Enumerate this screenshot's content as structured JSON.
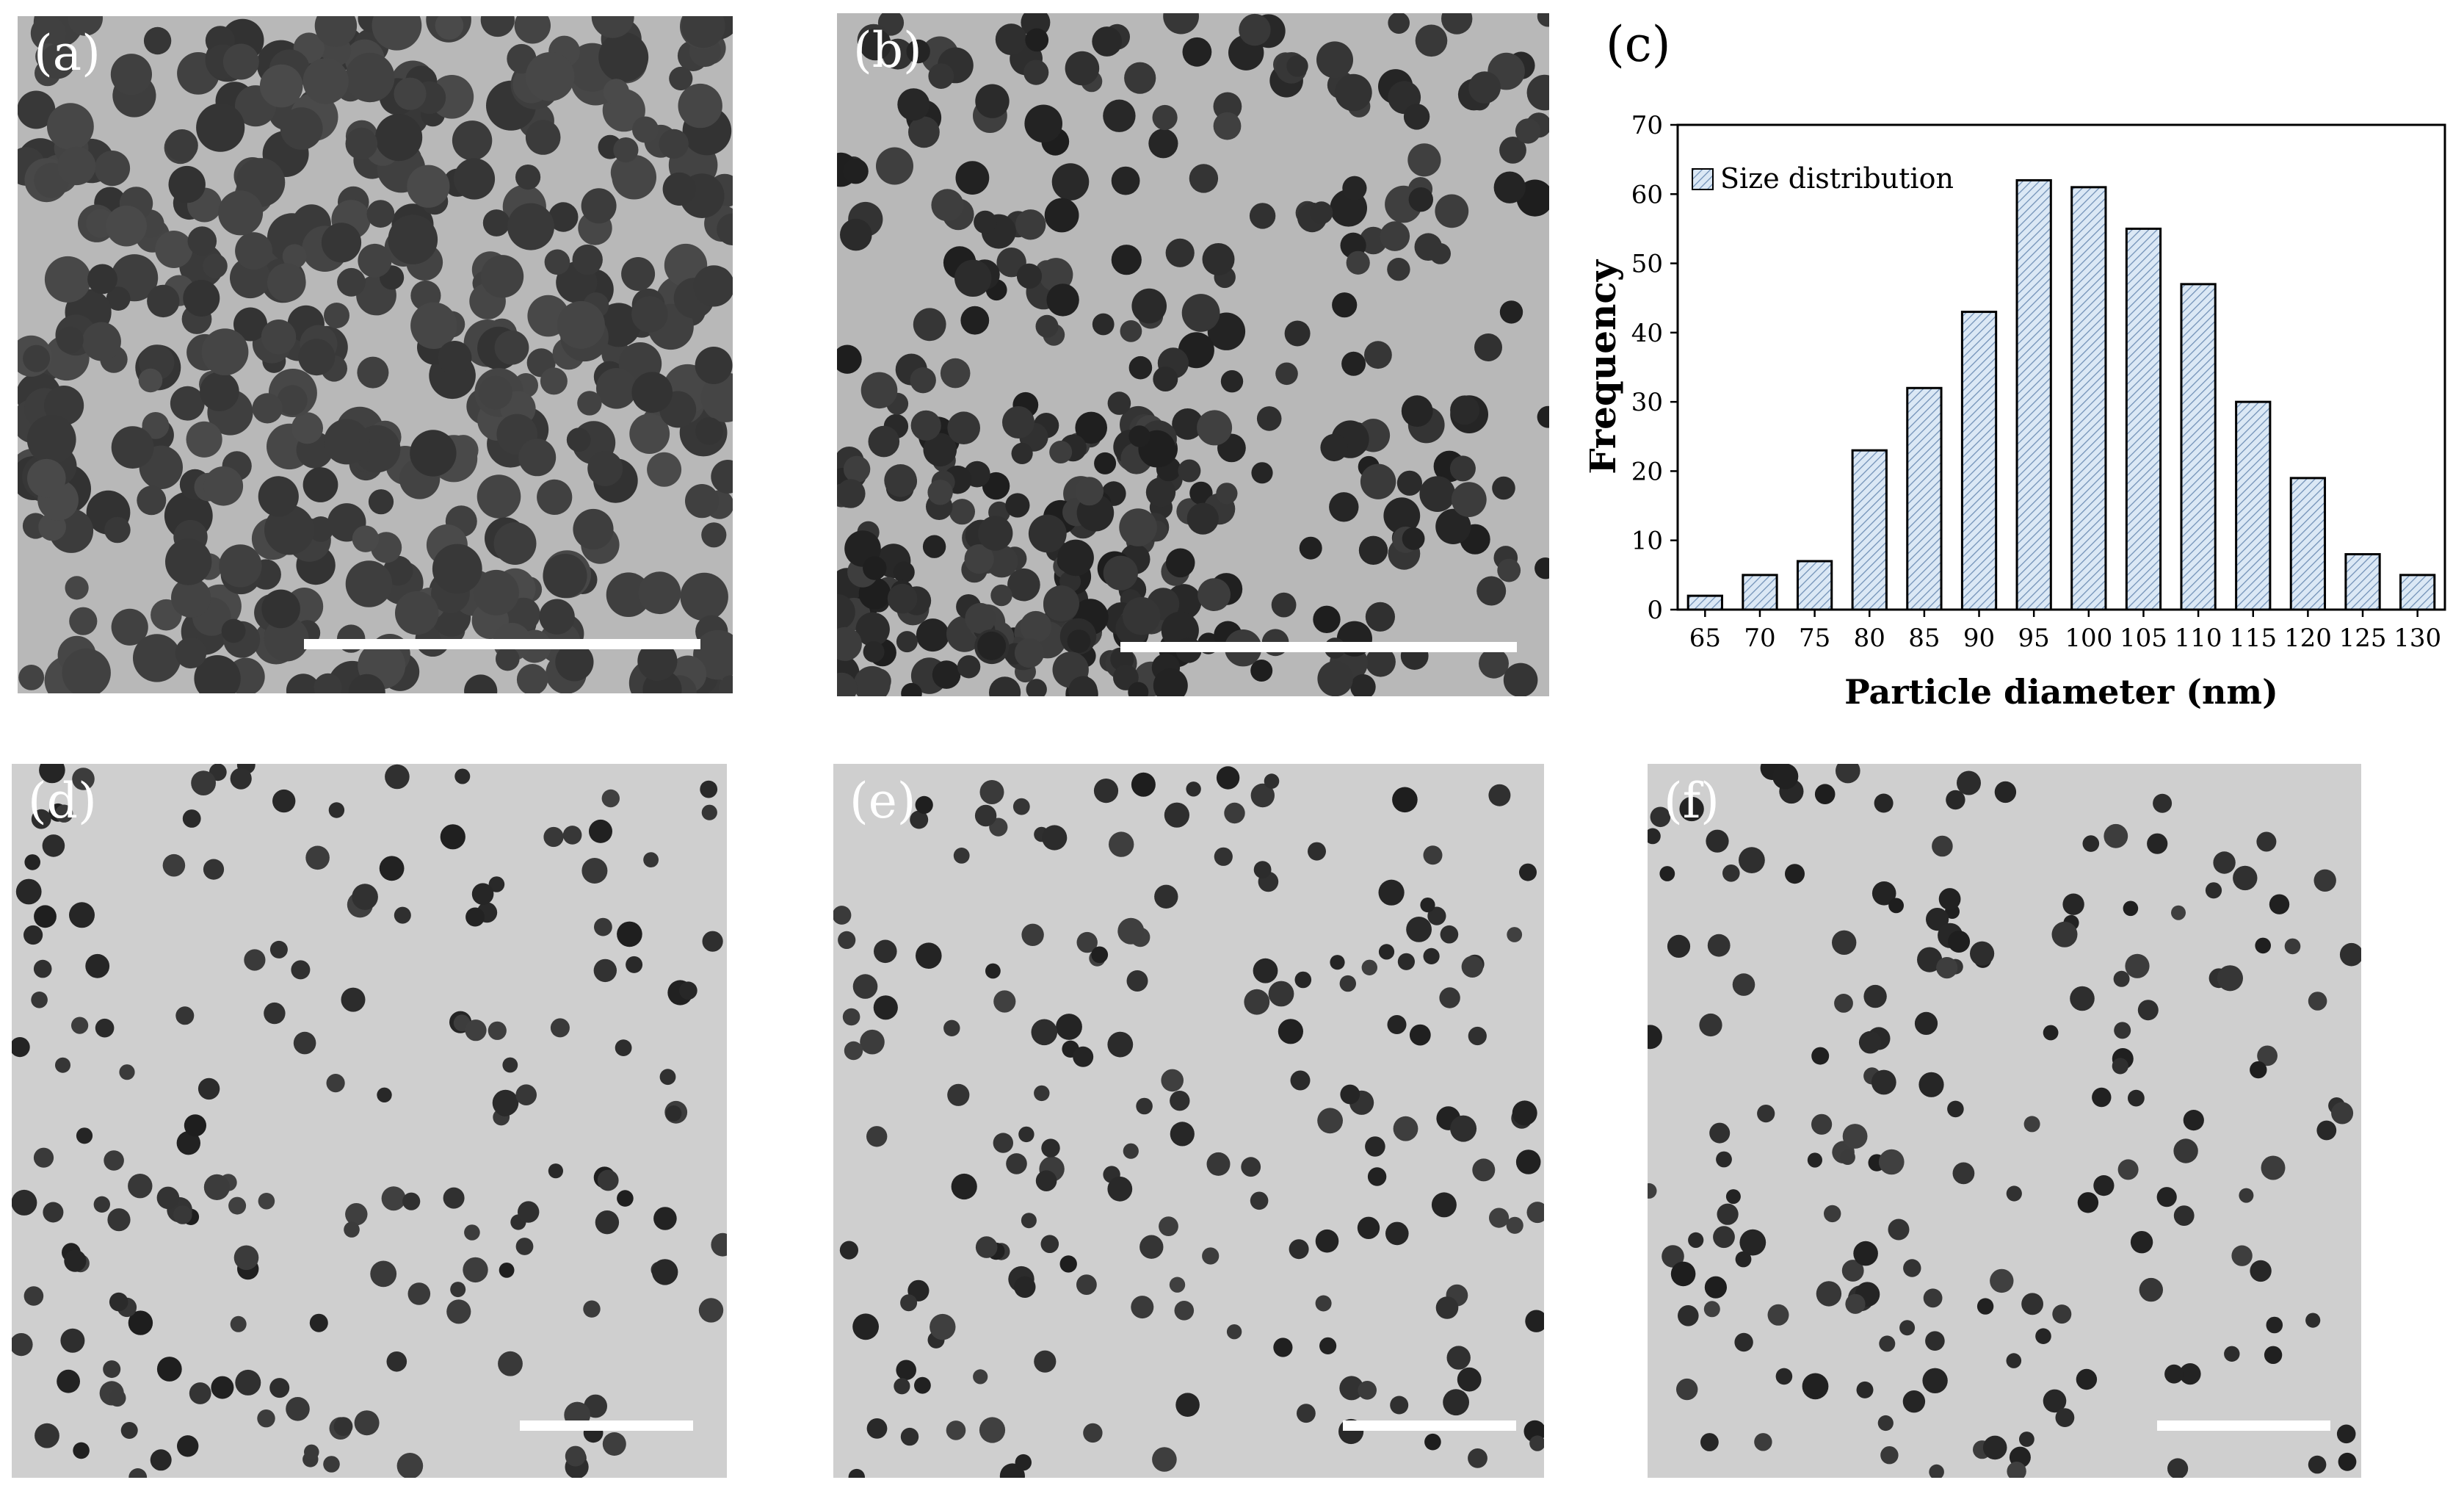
{
  "panels": [
    {
      "id": "a",
      "label": "(a)",
      "kind": "micrograph"
    },
    {
      "id": "b",
      "label": "(b)",
      "kind": "micrograph"
    },
    {
      "id": "c",
      "label": "(c)",
      "kind": "chart"
    },
    {
      "id": "d",
      "label": "(d)",
      "kind": "micrograph"
    },
    {
      "id": "e",
      "label": "(e)",
      "kind": "micrograph"
    },
    {
      "id": "f",
      "label": "(f)",
      "kind": "micrograph"
    }
  ],
  "colors": {
    "bar_fill": "#dbe8f5",
    "bar_hatch": "#6f8fb5",
    "micrograph_bg_light": "#cfcfcf",
    "micrograph_bg_dark": "#a9a9a9",
    "particle": "#2b2b2b"
  },
  "chart_data": {
    "type": "bar",
    "categories": [
      "65",
      "70",
      "75",
      "80",
      "85",
      "90",
      "95",
      "100",
      "105",
      "110",
      "115",
      "120",
      "125",
      "130"
    ],
    "series": [
      {
        "name": "Size distribution",
        "values": [
          2,
          5,
          7,
          23,
          32,
          43,
          62,
          61,
          55,
          47,
          30,
          19,
          8,
          5
        ]
      }
    ],
    "xlabel": "Particle diameter (nm)",
    "ylabel": "Frequency",
    "ylim": [
      0,
      70
    ],
    "yticks": [
      "0",
      "10",
      "20",
      "30",
      "40",
      "50",
      "60",
      "70"
    ],
    "legend_position": "top-left",
    "grid": false
  }
}
